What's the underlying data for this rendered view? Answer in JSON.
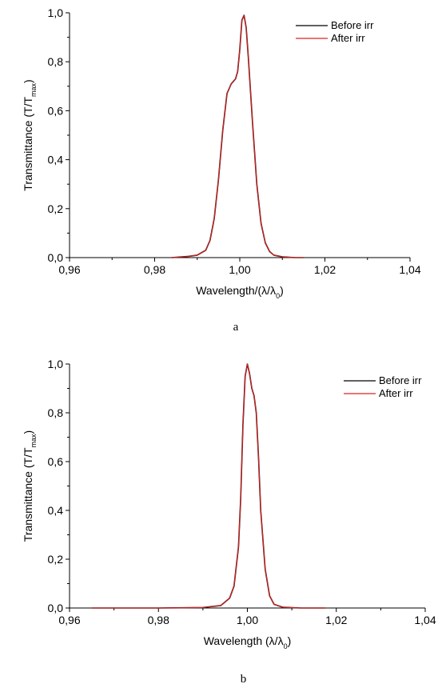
{
  "chart_data": [
    {
      "type": "line",
      "panel_label": "a",
      "xlabel": "Wavelength/(λ/λ0)",
      "ylabel": "Transmittance (T/Tmax)",
      "xlim": [
        0.96,
        1.04
      ],
      "ylim": [
        0.0,
        1.0
      ],
      "x_ticks": [
        "0,96",
        "0,98",
        "1,00",
        "1,02",
        "1,04"
      ],
      "y_ticks": [
        "0,0",
        "0,2",
        "0,4",
        "0,6",
        "0,8",
        "1,0"
      ],
      "legend_position": "top-right",
      "series": [
        {
          "name": "Before irr",
          "color": "#000000",
          "x": [
            0.984,
            0.988,
            0.99,
            0.992,
            0.993,
            0.994,
            0.995,
            0.996,
            0.997,
            0.998,
            0.9985,
            0.999,
            0.9995,
            1.0,
            1.0005,
            1.001,
            1.0015,
            1.002,
            1.003,
            1.004,
            1.005,
            1.006,
            1.007,
            1.008,
            1.01,
            1.013,
            1.015
          ],
          "y": [
            0.0,
            0.005,
            0.01,
            0.03,
            0.07,
            0.16,
            0.32,
            0.52,
            0.67,
            0.71,
            0.72,
            0.73,
            0.76,
            0.85,
            0.97,
            0.99,
            0.94,
            0.82,
            0.55,
            0.3,
            0.14,
            0.06,
            0.025,
            0.01,
            0.003,
            0.0,
            0.0
          ]
        },
        {
          "name": "After irr",
          "color": "#e02020",
          "x": [
            0.984,
            0.988,
            0.99,
            0.992,
            0.993,
            0.994,
            0.995,
            0.996,
            0.997,
            0.998,
            0.9985,
            0.999,
            0.9995,
            1.0,
            1.0005,
            1.001,
            1.0015,
            1.002,
            1.003,
            1.004,
            1.005,
            1.006,
            1.007,
            1.008,
            1.01,
            1.013,
            1.015
          ],
          "y": [
            0.0,
            0.005,
            0.01,
            0.03,
            0.07,
            0.16,
            0.32,
            0.52,
            0.67,
            0.71,
            0.72,
            0.73,
            0.76,
            0.85,
            0.97,
            0.99,
            0.94,
            0.82,
            0.55,
            0.3,
            0.14,
            0.06,
            0.025,
            0.01,
            0.003,
            0.0,
            0.0
          ]
        }
      ]
    },
    {
      "type": "line",
      "panel_label": "b",
      "xlabel": "Wavelength (λ/λ0)",
      "ylabel": "Transmittance (T/Tmax)",
      "xlim": [
        0.96,
        1.04
      ],
      "ylim": [
        0.0,
        1.0
      ],
      "x_ticks": [
        "0,96",
        "0,98",
        "1,00",
        "1,02",
        "1,04"
      ],
      "y_ticks": [
        "0,0",
        "0,2",
        "0,4",
        "0,6",
        "0,8",
        "1,0"
      ],
      "legend_position": "top-right",
      "series": [
        {
          "name": "Before irr",
          "color": "#000000",
          "x": [
            0.965,
            0.98,
            0.99,
            0.994,
            0.996,
            0.997,
            0.998,
            0.9985,
            0.999,
            0.9995,
            1.0,
            1.0005,
            1.001,
            1.0015,
            1.002,
            1.0025,
            1.003,
            1.004,
            1.005,
            1.006,
            1.008,
            1.012,
            1.0175
          ],
          "y": [
            0.0,
            0.0,
            0.002,
            0.01,
            0.04,
            0.09,
            0.25,
            0.45,
            0.75,
            0.95,
            1.0,
            0.96,
            0.9,
            0.87,
            0.8,
            0.62,
            0.4,
            0.16,
            0.05,
            0.015,
            0.003,
            0.0,
            0.0
          ]
        },
        {
          "name": "After irr",
          "color": "#e02020",
          "x": [
            0.965,
            0.98,
            0.99,
            0.994,
            0.996,
            0.997,
            0.998,
            0.9985,
            0.999,
            0.9995,
            1.0,
            1.0005,
            1.001,
            1.0015,
            1.002,
            1.0025,
            1.003,
            1.004,
            1.005,
            1.006,
            1.008,
            1.012,
            1.0175
          ],
          "y": [
            0.0,
            0.0,
            0.002,
            0.01,
            0.04,
            0.09,
            0.25,
            0.45,
            0.75,
            0.95,
            1.0,
            0.96,
            0.9,
            0.87,
            0.8,
            0.62,
            0.4,
            0.16,
            0.05,
            0.015,
            0.003,
            0.0,
            0.0
          ]
        }
      ]
    }
  ]
}
